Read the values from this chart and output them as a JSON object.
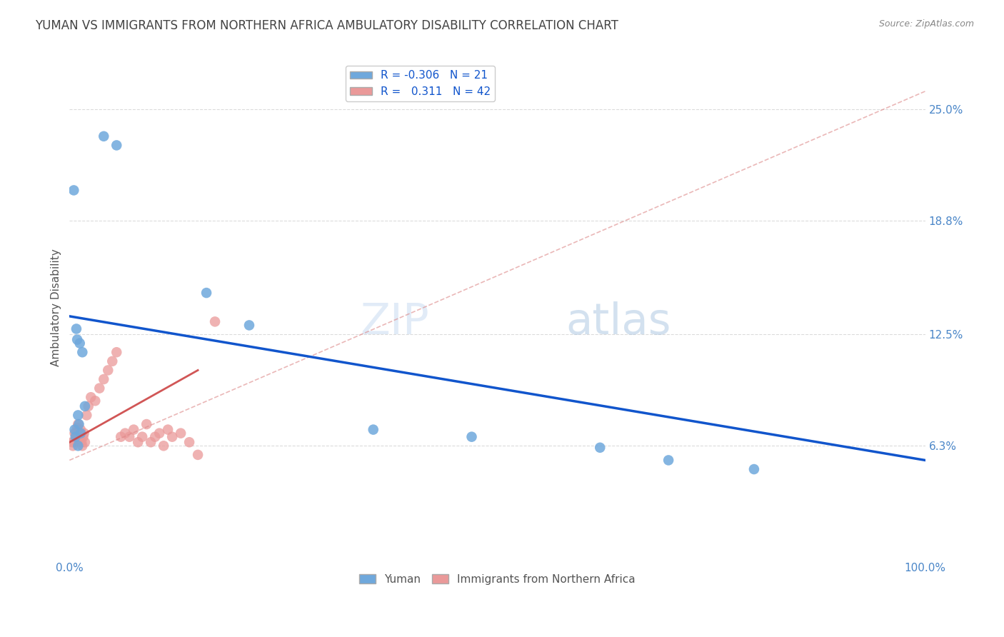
{
  "title": "YUMAN VS IMMIGRANTS FROM NORTHERN AFRICA AMBULATORY DISABILITY CORRELATION CHART",
  "source": "Source: ZipAtlas.com",
  "ylabel": "Ambulatory Disability",
  "xlim": [
    0.0,
    100.0
  ],
  "ylim": [
    0.0,
    28.0
  ],
  "ytick_vals": [
    6.3,
    12.5,
    18.8,
    25.0
  ],
  "ytick_labels": [
    "6.3%",
    "12.5%",
    "18.8%",
    "25.0%"
  ],
  "xtick_vals": [
    0.0,
    25.0,
    50.0,
    75.0,
    100.0
  ],
  "xtick_labels": [
    "0.0%",
    "",
    "",
    "",
    "100.0%"
  ],
  "blue_color": "#6fa8dc",
  "pink_color": "#ea9999",
  "blue_line_color": "#1155cc",
  "pink_solid_color": "#cc4444",
  "pink_dash_color": "#dd8888",
  "watermark_text": "ZIPatlas",
  "blue_scatter_x": [
    0.5,
    4.0,
    5.5,
    0.8,
    0.9,
    1.2,
    1.5,
    1.8,
    1.0,
    1.1,
    1.3,
    0.6,
    0.7,
    1.0,
    16.0,
    21.0,
    35.5,
    47.0,
    62.0,
    70.0,
    80.0
  ],
  "blue_scatter_y": [
    20.5,
    23.5,
    23.0,
    12.8,
    12.2,
    12.0,
    11.5,
    8.5,
    8.0,
    7.5,
    7.0,
    7.2,
    6.8,
    6.3,
    14.8,
    13.0,
    7.2,
    6.8,
    6.2,
    5.5,
    5.0
  ],
  "pink_scatter_x": [
    0.3,
    0.4,
    0.5,
    0.6,
    0.7,
    0.8,
    0.9,
    1.0,
    1.1,
    1.2,
    1.3,
    1.4,
    1.5,
    1.6,
    1.7,
    1.8,
    2.0,
    2.2,
    2.5,
    3.0,
    3.5,
    4.0,
    4.5,
    5.0,
    5.5,
    6.0,
    6.5,
    7.0,
    7.5,
    8.0,
    8.5,
    9.0,
    9.5,
    10.0,
    10.5,
    11.0,
    11.5,
    12.0,
    13.0,
    14.0,
    15.0,
    17.0
  ],
  "pink_scatter_y": [
    6.5,
    6.3,
    6.5,
    7.0,
    7.0,
    6.8,
    7.3,
    7.5,
    7.0,
    6.8,
    7.2,
    6.5,
    6.3,
    6.8,
    7.0,
    6.5,
    8.0,
    8.5,
    9.0,
    8.8,
    9.5,
    10.0,
    10.5,
    11.0,
    11.5,
    6.8,
    7.0,
    6.8,
    7.2,
    6.5,
    6.8,
    7.5,
    6.5,
    6.8,
    7.0,
    6.3,
    7.2,
    6.8,
    7.0,
    6.5,
    5.8,
    13.2
  ],
  "blue_trend_x": [
    0.0,
    100.0
  ],
  "blue_trend_y": [
    13.5,
    5.5
  ],
  "pink_solid_trend_x": [
    0.0,
    15.0
  ],
  "pink_solid_trend_y": [
    6.5,
    10.5
  ],
  "pink_dash_trend_x": [
    0.0,
    100.0
  ],
  "pink_dash_trend_y": [
    5.5,
    26.0
  ],
  "grid_color": "#cccccc",
  "background_color": "#ffffff",
  "title_color": "#434343",
  "tick_color": "#4a86c8"
}
